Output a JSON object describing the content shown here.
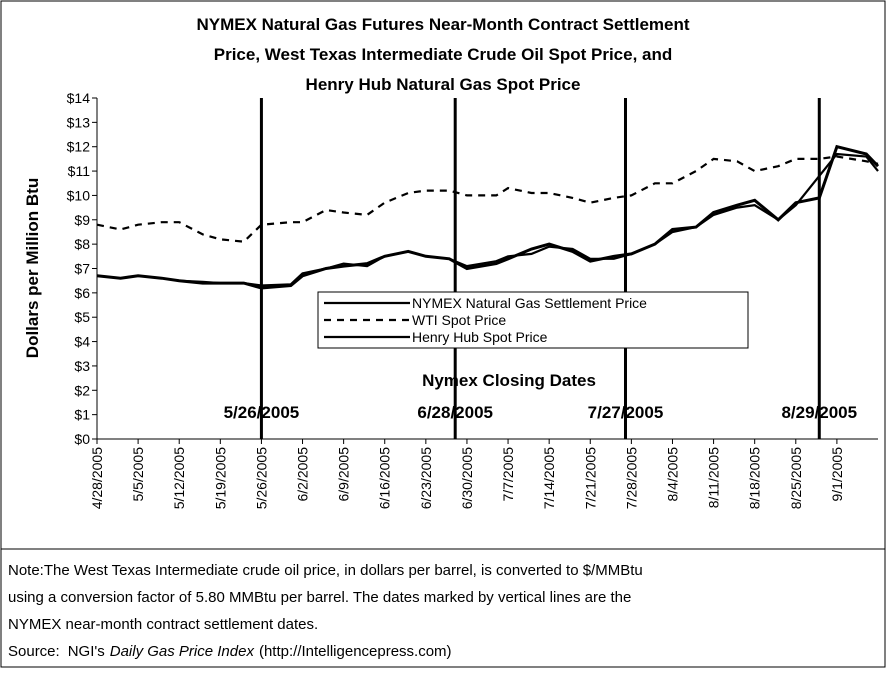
{
  "chart_data": {
    "type": "line",
    "title": [
      "NYMEX Natural Gas Futures Near-Month Contract Settlement",
      "Price, West Texas Intermediate Crude Oil Spot Price, and",
      "Henry Hub Natural Gas Spot Price"
    ],
    "y_label": "Dollars per Million Btu",
    "x": [
      "4/28/2005",
      "5/2/2005",
      "5/5/2005",
      "5/9/2005",
      "5/12/2005",
      "5/16/2005",
      "5/19/2005",
      "5/23/2005",
      "5/26/2005",
      "5/31/2005",
      "6/2/2005",
      "6/6/2005",
      "6/9/2005",
      "6/13/2005",
      "6/16/2005",
      "6/20/2005",
      "6/23/2005",
      "6/27/2005",
      "6/30/2005",
      "7/5/2005",
      "7/7/2005",
      "7/11/2005",
      "7/14/2005",
      "7/18/2005",
      "7/21/2005",
      "7/25/2005",
      "7/28/2005",
      "8/1/2005",
      "8/4/2005",
      "8/8/2005",
      "8/11/2005",
      "8/15/2005",
      "8/18/2005",
      "8/22/2005",
      "8/25/2005",
      "8/29/2005",
      "9/1/2005",
      "9/6/2005",
      "9/8/2005"
    ],
    "xlim": [
      "4/28/2005",
      "9/8/2005"
    ],
    "xticks": [
      "4/28/2005",
      "5/5/2005",
      "5/12/2005",
      "5/19/2005",
      "5/26/2005",
      "6/2/2005",
      "6/9/2005",
      "6/16/2005",
      "6/23/2005",
      "6/30/2005",
      "7/7/2005",
      "7/14/2005",
      "7/21/2005",
      "7/28/2005",
      "8/4/2005",
      "8/11/2005",
      "8/18/2005",
      "8/25/2005",
      "9/1/2005"
    ],
    "ylim": [
      0,
      14
    ],
    "yticks": [
      {
        "value": 0,
        "label": "$0"
      },
      {
        "value": 1,
        "label": "$1"
      },
      {
        "value": 2,
        "label": "$2"
      },
      {
        "value": 3,
        "label": "$3"
      },
      {
        "value": 4,
        "label": "$4"
      },
      {
        "value": 5,
        "label": "$5"
      },
      {
        "value": 6,
        "label": "$6"
      },
      {
        "value": 7,
        "label": "$7"
      },
      {
        "value": 8,
        "label": "$8"
      },
      {
        "value": 9,
        "label": "$9"
      },
      {
        "value": 10,
        "label": "$10"
      },
      {
        "value": 11,
        "label": "$11"
      },
      {
        "value": 12,
        "label": "$12"
      },
      {
        "value": 13,
        "label": "$13"
      },
      {
        "value": 14,
        "label": "$14"
      }
    ],
    "series": [
      {
        "name": "NYMEX Natural Gas Settlement Price",
        "color": "#000000",
        "style": "solid",
        "values": [
          6.7,
          6.6,
          6.7,
          6.6,
          6.5,
          6.45,
          6.4,
          6.4,
          6.3,
          6.35,
          6.8,
          7.0,
          7.2,
          7.1,
          7.5,
          7.7,
          7.5,
          7.4,
          7.1,
          7.3,
          7.5,
          7.6,
          7.9,
          7.8,
          7.4,
          7.4,
          7.6,
          8.0,
          8.5,
          8.7,
          9.2,
          9.5,
          9.6,
          9.0,
          9.6,
          10.8,
          11.7,
          11.6,
          11.0
        ]
      },
      {
        "name": "WTI Spot Price",
        "color": "#000000",
        "style": "dashed",
        "values": [
          8.8,
          8.6,
          8.8,
          8.9,
          8.9,
          8.4,
          8.2,
          8.1,
          8.8,
          8.9,
          8.9,
          9.4,
          9.3,
          9.2,
          9.7,
          10.1,
          10.2,
          10.2,
          10.0,
          10.0,
          10.3,
          10.1,
          10.1,
          9.9,
          9.7,
          9.9,
          10.0,
          10.5,
          10.5,
          11.0,
          11.5,
          11.4,
          11.0,
          11.2,
          11.5,
          11.5,
          11.6,
          11.4,
          11.3
        ]
      },
      {
        "name": "Henry Hub Spot Price",
        "color": "#000000",
        "style": "solid",
        "values": [
          6.7,
          6.6,
          6.7,
          6.6,
          6.5,
          6.4,
          6.4,
          6.4,
          6.2,
          6.3,
          6.7,
          7.0,
          7.1,
          7.2,
          7.5,
          7.7,
          7.5,
          7.4,
          7.0,
          7.2,
          7.4,
          7.8,
          8.0,
          7.7,
          7.3,
          7.5,
          7.6,
          8.0,
          8.6,
          8.7,
          9.3,
          9.6,
          9.8,
          9.0,
          9.7,
          9.9,
          12.0,
          11.7,
          11.2
        ]
      }
    ],
    "annotation": "Nymex Closing Dates",
    "vlines": [
      "5/26/2005",
      "6/28/2005",
      "7/27/2005",
      "8/29/2005"
    ],
    "legend": "center",
    "grid": false
  },
  "note": [
    "Note:The West Texas Intermediate crude oil price, in dollars per barrel,  is converted to $/MMBtu",
    "using a conversion factor of 5.80 MMBtu per barrel.  The dates marked by vertical lines are the",
    "NYMEX near-month contract settlement dates."
  ],
  "source": {
    "label": "Source:",
    "name": "NGI's",
    "publication": "Daily Gas Price Index",
    "url": "(http://Intelligencepress.com)"
  }
}
